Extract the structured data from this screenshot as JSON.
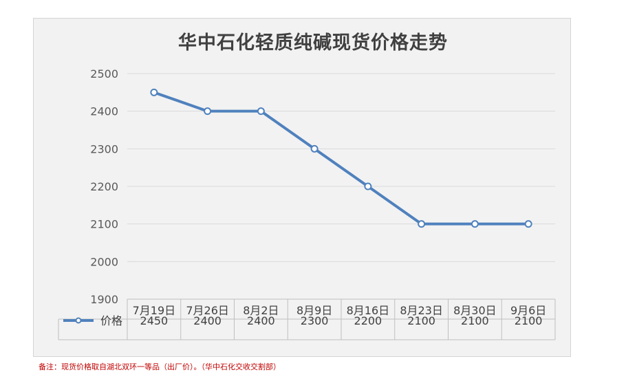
{
  "chart_data": {
    "type": "line",
    "title": "华中石化轻质纯碱现货价格走势",
    "categories": [
      "7月19日",
      "7月26日",
      "8月2日",
      "8月9日",
      "8月16日",
      "8月23日",
      "8月30日",
      "9月6日"
    ],
    "series": [
      {
        "name": "价格",
        "values": [
          2450,
          2400,
          2400,
          2300,
          2200,
          2100,
          2100,
          2100
        ],
        "color": "#4f81bd"
      }
    ],
    "ylim": [
      1900,
      2500
    ],
    "yticks": [
      1900,
      2000,
      2100,
      2200,
      2300,
      2400,
      2500
    ],
    "grid": true,
    "data_table": true,
    "marker": "circle-hollow"
  },
  "footnote": "备注：现货价格取自湖北双环一等品（出厂价）。（华中石化交收交割部）"
}
